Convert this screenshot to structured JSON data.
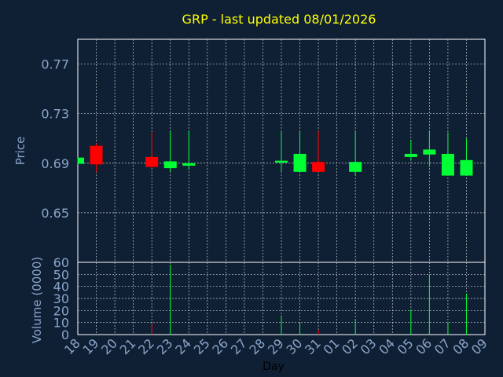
{
  "chart_data": {
    "type": "candlestick",
    "title": "GRP - last updated 08/01/2026",
    "price_panel": {
      "ylabel": "Price",
      "yticks": [
        0.65,
        0.69,
        0.73,
        0.77
      ],
      "ytick_labels": [
        "0.65",
        "0.69",
        "0.73",
        "0.77"
      ],
      "ylim": [
        0.61,
        0.79
      ],
      "grid": true
    },
    "volume_panel": {
      "ylabel": "Volume (0000)",
      "yticks": [
        0,
        10,
        20,
        30,
        40,
        50,
        60
      ],
      "ytick_labels": [
        "0",
        "10",
        "20",
        "30",
        "40",
        "50",
        "60"
      ],
      "ylim": [
        0,
        60
      ],
      "grid": true
    },
    "xlabel": "Day",
    "categories": [
      "18",
      "19",
      "20",
      "21",
      "22",
      "23",
      "24",
      "25",
      "26",
      "27",
      "28",
      "29",
      "30",
      "31",
      "01",
      "02",
      "03",
      "04",
      "05",
      "06",
      "07",
      "08",
      "09"
    ],
    "colors": {
      "up": "#00ff33",
      "down": "#ff0000",
      "grid": "#c8c8c8",
      "background": "#0f2035"
    },
    "candles": [
      {
        "x": "18",
        "open": 0.6895,
        "close": 0.6945,
        "high": 0.6945,
        "low": 0.6895
      },
      {
        "x": "19",
        "open": 0.704,
        "close": 0.689,
        "high": 0.706,
        "low": 0.683
      },
      {
        "x": "22",
        "open": 0.695,
        "close": 0.687,
        "high": 0.715,
        "low": 0.686
      },
      {
        "x": "23",
        "open": 0.686,
        "close": 0.6915,
        "high": 0.716,
        "low": 0.683
      },
      {
        "x": "24",
        "open": 0.688,
        "close": 0.69,
        "high": 0.716,
        "low": 0.685
      },
      {
        "x": "29",
        "open": 0.6905,
        "close": 0.692,
        "high": 0.716,
        "low": 0.683
      },
      {
        "x": "30",
        "open": 0.683,
        "close": 0.6975,
        "high": 0.7165,
        "low": 0.683
      },
      {
        "x": "31",
        "open": 0.691,
        "close": 0.683,
        "high": 0.716,
        "low": 0.683
      },
      {
        "x": "02",
        "open": 0.683,
        "close": 0.691,
        "high": 0.716,
        "low": 0.68
      },
      {
        "x": "05",
        "open": 0.695,
        "close": 0.6975,
        "high": 0.709,
        "low": 0.692
      },
      {
        "x": "06",
        "open": 0.697,
        "close": 0.701,
        "high": 0.716,
        "low": 0.687
      },
      {
        "x": "07",
        "open": 0.68,
        "close": 0.6975,
        "high": 0.715,
        "low": 0.68
      },
      {
        "x": "08",
        "open": 0.68,
        "close": 0.6925,
        "high": 0.71,
        "low": 0.68
      }
    ],
    "volume": [
      {
        "x": "22",
        "value": 9,
        "direction": "down"
      },
      {
        "x": "23",
        "value": 58,
        "direction": "up"
      },
      {
        "x": "29",
        "value": 16,
        "direction": "up"
      },
      {
        "x": "30",
        "value": 10,
        "direction": "up"
      },
      {
        "x": "31",
        "value": 4,
        "direction": "down"
      },
      {
        "x": "02",
        "value": 13,
        "direction": "up"
      },
      {
        "x": "05",
        "value": 21,
        "direction": "up"
      },
      {
        "x": "06",
        "value": 50,
        "direction": "up"
      },
      {
        "x": "07",
        "value": 10,
        "direction": "up"
      },
      {
        "x": "08",
        "value": 34,
        "direction": "up"
      }
    ]
  }
}
